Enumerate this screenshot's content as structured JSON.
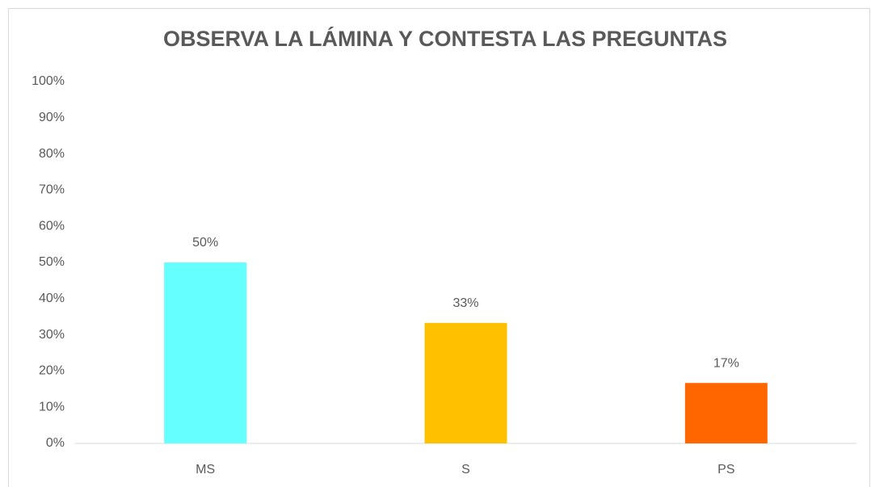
{
  "chart_data": {
    "type": "bar",
    "title": "OBSERVA LA LÁMINA Y CONTESTA LAS PREGUNTAS",
    "categories": [
      "MS",
      "S",
      "PS"
    ],
    "values": [
      50,
      33.3,
      16.7
    ],
    "value_labels": [
      "50%",
      "33%",
      "17%"
    ],
    "colors": [
      "#66ffff",
      "#ffc000",
      "#ff6600"
    ],
    "ylim": [
      0,
      100
    ],
    "yticks": [
      {
        "value": 0,
        "label": "0%"
      },
      {
        "value": 10,
        "label": "10%"
      },
      {
        "value": 20,
        "label": "20%"
      },
      {
        "value": 30,
        "label": "30%"
      },
      {
        "value": 40,
        "label": "40%"
      },
      {
        "value": 50,
        "label": "50%"
      },
      {
        "value": 60,
        "label": "60%"
      },
      {
        "value": 70,
        "label": "70%"
      },
      {
        "value": 80,
        "label": "80%"
      },
      {
        "value": 90,
        "label": "90%"
      },
      {
        "value": 100,
        "label": "100%"
      }
    ],
    "grid": false
  }
}
